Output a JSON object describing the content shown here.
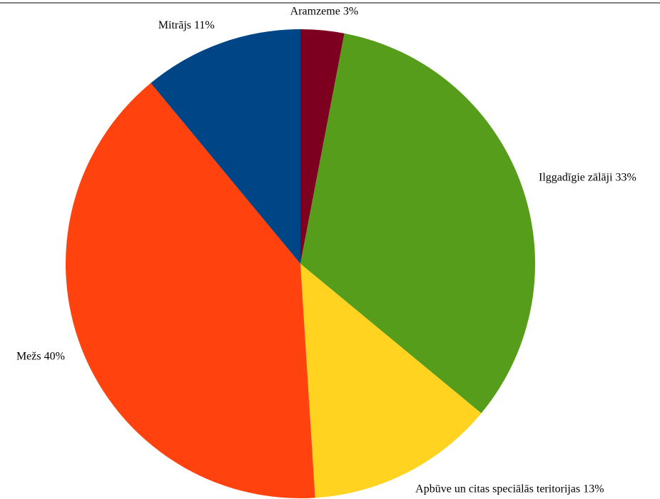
{
  "chart_data": {
    "type": "pie",
    "categories": [
      "Aramzeme",
      "Ilggadīgie zālāji",
      "Apbūve un citas speciālās teritorijas",
      "Mežs",
      "Mitrājs"
    ],
    "values": [
      3,
      33,
      13,
      40,
      11
    ],
    "value_labels": [
      "3%",
      "33%",
      "13%",
      "40%",
      "11%"
    ],
    "colors": [
      "#7e0021",
      "#579d1c",
      "#ffd320",
      "#ff420e",
      "#004586"
    ]
  }
}
